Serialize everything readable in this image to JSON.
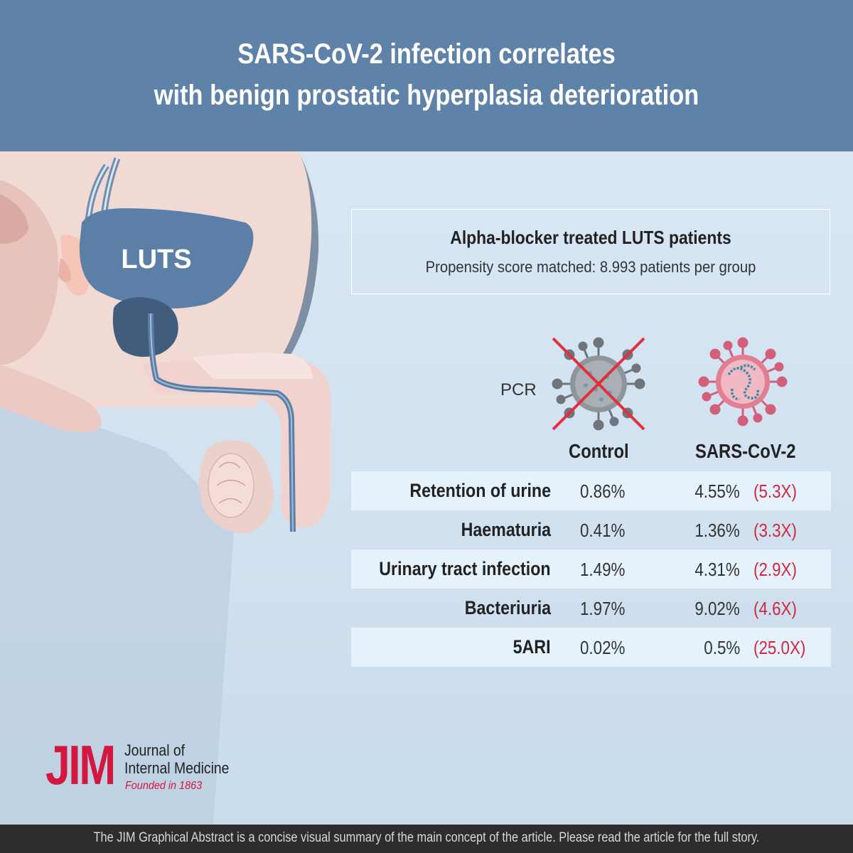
{
  "header": {
    "title_line1": "SARS-CoV-2 infection correlates",
    "title_line2": "with benign prostatic hyperplasia deterioration"
  },
  "illustration": {
    "label": "LUTS",
    "icon": "prostate-anatomy"
  },
  "study": {
    "title": "Alpha-blocker treated LUTS patients",
    "subtitle": "Propensity score matched: 8.993 patients per group"
  },
  "pcr": {
    "label": "PCR",
    "negative_icon": "crossed-virus-icon",
    "positive_icon": "virus-icon"
  },
  "table": {
    "col_control": "Control",
    "col_sars": "SARS-CoV-2",
    "rows": [
      {
        "label": "Retention of urine",
        "control": "0.86%",
        "sars": "4.55%",
        "ratio": "(5.3X)"
      },
      {
        "label": "Haematuria",
        "control": "0.41%",
        "sars": "1.36%",
        "ratio": "(3.3X)"
      },
      {
        "label": "Urinary tract infection",
        "control": "1.49%",
        "sars": "4.31%",
        "ratio": "(2.9X)"
      },
      {
        "label": "Bacteriuria",
        "control": "1.97%",
        "sars": "9.02%",
        "ratio": "(4.6X)"
      },
      {
        "label": "5ARI",
        "control": "0.02%",
        "sars": "0.5%",
        "ratio": "(25.0X)"
      }
    ]
  },
  "logo": {
    "acronym": "JIM",
    "name_line1": "Journal of",
    "name_line2": "Internal Medicine",
    "founded": "Founded in 1863"
  },
  "footer": {
    "text": "The JIM Graphical Abstract is a concise visual summary of the main concept of the article. Please read the article for the full story."
  },
  "colors": {
    "header_bg": "#5f82a8",
    "accent_red": "#d3173f",
    "row_shade": "#e6f2fb",
    "bladder": "#5b7fa6"
  }
}
